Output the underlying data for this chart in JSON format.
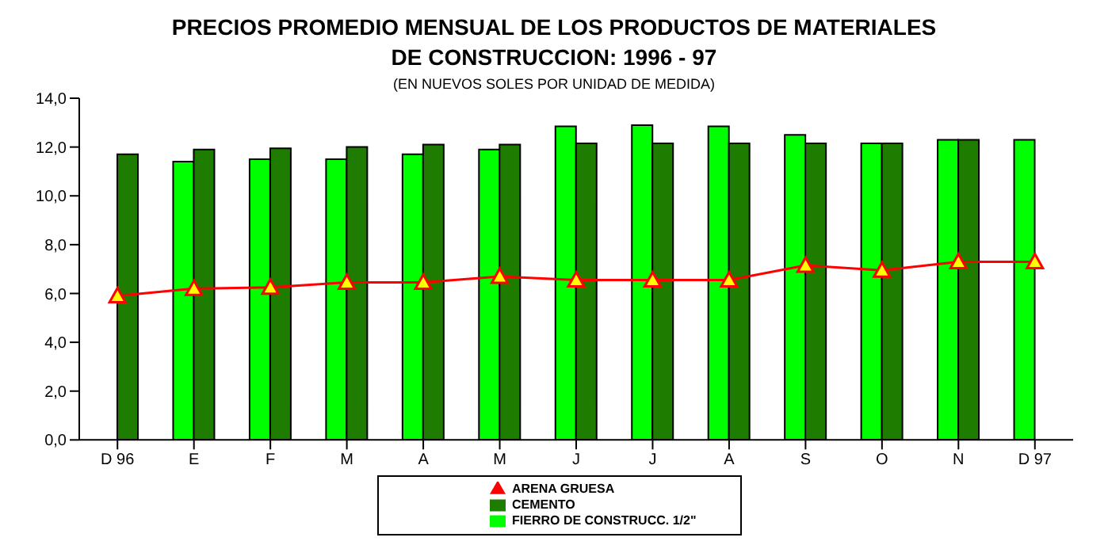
{
  "chart_data": {
    "type": "bar",
    "title": "PRECIOS PROMEDIO MENSUAL DE LOS PRODUCTOS DE MATERIALES DE CONSTRUCCION: 1996 - 97",
    "subtitle": "(EN NUEVOS SOLES POR UNIDAD DE MEDIDA)",
    "categories": [
      "D  96",
      "E",
      "F",
      "M",
      "A",
      "M",
      "J",
      "J",
      "A",
      "S",
      "O",
      "N",
      "D  97"
    ],
    "series": [
      {
        "name": "FIERRO DE CONSTRUCC. 1/2\"",
        "color": "#00ff00",
        "values": [
          null,
          11.4,
          11.5,
          11.5,
          11.7,
          11.9,
          12.85,
          12.9,
          12.85,
          12.5,
          12.15,
          12.3,
          12.3
        ]
      },
      {
        "name": "CEMENTO",
        "color": "#1e7d00",
        "values": [
          11.7,
          11.9,
          11.95,
          12.0,
          12.1,
          12.1,
          12.15,
          12.15,
          12.15,
          12.15,
          12.15,
          12.3,
          null
        ]
      },
      {
        "name": "ARENA GRUESA",
        "type": "line",
        "color": "#ff0000",
        "marker": "triangle",
        "values": [
          5.9,
          6.2,
          6.25,
          6.45,
          6.45,
          6.7,
          6.55,
          6.55,
          6.55,
          7.15,
          6.95,
          7.3,
          7.3
        ]
      }
    ],
    "ylim": [
      0,
      14
    ],
    "yticks": [
      {
        "value": 0,
        "label": "0,0"
      },
      {
        "value": 2,
        "label": "2,0"
      },
      {
        "value": 4,
        "label": "4,0"
      },
      {
        "value": 6,
        "label": "6,0"
      },
      {
        "value": 8,
        "label": "8,0"
      },
      {
        "value": 10,
        "label": "10,0"
      },
      {
        "value": 12,
        "label": "12,0"
      },
      {
        "value": 14,
        "label": "14,0"
      }
    ],
    "grid": false,
    "legend": "bottom"
  }
}
